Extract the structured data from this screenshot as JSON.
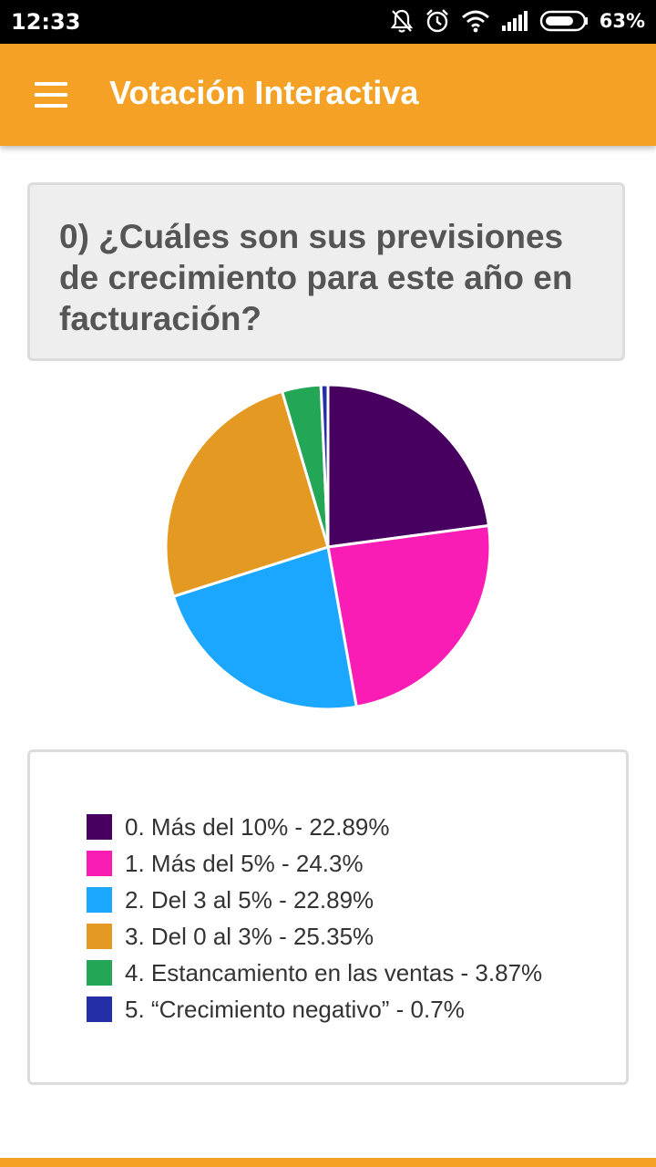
{
  "status_bar": {
    "time": "12:33",
    "battery": "63%",
    "icons": [
      "notifications-off-icon",
      "alarm-icon",
      "wifi-icon",
      "signal-icon",
      "battery-icon"
    ]
  },
  "app_bar": {
    "title": "Votación Interactiva",
    "menu_icon": "hamburger-menu-icon",
    "color": "#f4a125"
  },
  "question": {
    "text": "0) ¿Cuáles son sus previsiones de crecimiento para este año en facturación?"
  },
  "chart_data": {
    "type": "pie",
    "start_angle_deg": 0,
    "direction": "clockwise",
    "slices": [
      {
        "label": "0. Más del 10% - 22.89%",
        "category": "0. Más del 10%",
        "value": 22.89,
        "color": "#470060"
      },
      {
        "label": "1. Más del 5% - 24.3%",
        "category": "1. Más del 5%",
        "value": 24.3,
        "color": "#f91db5"
      },
      {
        "label": "2. Del 3 al 5% - 22.89%",
        "category": "2. Del 3 al 5%",
        "value": 22.89,
        "color": "#1ba7ff"
      },
      {
        "label": "3. Del 0 al 3% - 25.35%",
        "category": "3. Del 0 al 3%",
        "value": 25.35,
        "color": "#e49a22"
      },
      {
        "label": "4. Estancamiento en las ventas - 3.87%",
        "category": "4. Estancamiento en las ventas",
        "value": 3.87,
        "color": "#23a655"
      },
      {
        "label": "5. “Crecimiento negativo” - 0.7%",
        "category": "5. “Crecimiento negativo”",
        "value": 0.7,
        "color": "#242ea6"
      }
    ]
  }
}
